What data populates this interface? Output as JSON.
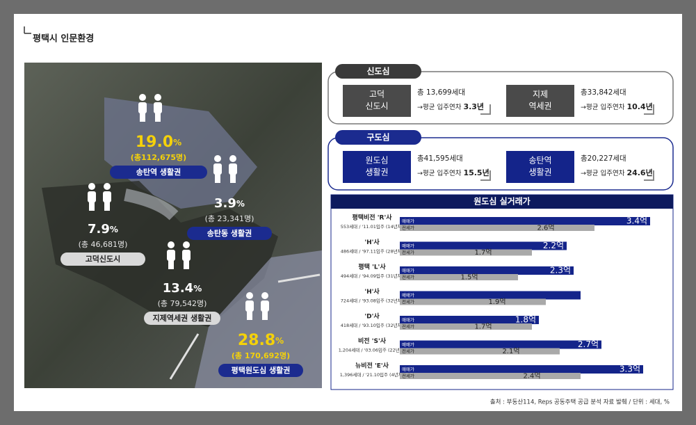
{
  "header": {
    "title": "평택시 인문환경"
  },
  "regions": [
    {
      "pct": "19.0",
      "pct_unit": "%",
      "count": "(총112,675명)",
      "name": "송탄역 생활권"
    },
    {
      "pct": "3.9",
      "pct_unit": "%",
      "count": "(총 23,341명)",
      "name": "송탄동 생활권"
    },
    {
      "pct": "7.9",
      "pct_unit": "%",
      "count": "(총 46,681명)",
      "name": "고덕신도시"
    },
    {
      "pct": "13.4",
      "pct_unit": "%",
      "count": "(총 79,542명)",
      "name": "지제역세권 생활권"
    },
    {
      "pct": "28.8",
      "pct_unit": "%",
      "count": "(총 170,692명)",
      "name": "평택원도심 생활권"
    }
  ],
  "groups": [
    {
      "tag": "신도심",
      "cards": [
        {
          "label": [
            "고덕",
            "신도시"
          ],
          "households": "총 13,699세대",
          "avg_label": "평균 입주연차",
          "avg_value": "3.3년"
        },
        {
          "label": [
            "지제",
            "역세권"
          ],
          "households": "총33,842세대",
          "avg_label": "평균 입주연차",
          "avg_value": "10.4년"
        }
      ]
    },
    {
      "tag": "구도심",
      "cards": [
        {
          "label": [
            "원도심",
            "생활권"
          ],
          "households": "총41,595세대",
          "avg_label": "평균 입주연차",
          "avg_value": "15.5년"
        },
        {
          "label": [
            "송탄역",
            "생활권"
          ],
          "households": "총20,227세대",
          "avg_label": "평균 입주연차",
          "avg_value": "24.6년"
        }
      ]
    }
  ],
  "chart_data": {
    "type": "bar",
    "orientation": "horizontal",
    "title": "원도심 실거래가",
    "categories": [
      "평택비전 'R'사",
      "'H'사",
      "평택 'L'사",
      "'H'사",
      "'D'사",
      "비전 'S'사",
      "뉴비전 'E'사"
    ],
    "category_notes": [
      "553세대 / '11.01입주 (14년차)",
      "486세대 / '97.11입주 (28년차)",
      "494세대 / '94.09입주 (31년차)",
      "724세대 / '93.08입주 (32년차)",
      "418세대 / '93.10입주 (32년차)",
      "1,204세대 / '03.06입주 (22년차)",
      "1,396세대 / '21.10입주 (4년차)"
    ],
    "series": [
      {
        "name": "매매가",
        "color": "#14248a",
        "values": [
          3.4,
          2.2,
          2.3,
          2.4,
          1.8,
          2.7,
          3.3
        ],
        "value_labels": [
          "3.4억",
          "2.2억",
          "2.3억",
          null,
          "1.8억",
          "2.7억",
          "3.3억"
        ]
      },
      {
        "name": "전세가",
        "color": "#a9a9a9",
        "values": [
          2.6,
          1.7,
          1.5,
          1.9,
          1.7,
          2.1,
          2.4
        ],
        "value_labels": [
          "2.6억",
          "1.7억",
          "1.5억",
          "1.9억",
          "1.7억",
          "2.1억",
          "2.4억"
        ]
      }
    ],
    "xlim": [
      0,
      3.7
    ]
  },
  "footer": {
    "source": "출처 : 부동산114, Reps 공동주택 공급 분석 자료 발췌 / 단위 : 세대, %"
  }
}
